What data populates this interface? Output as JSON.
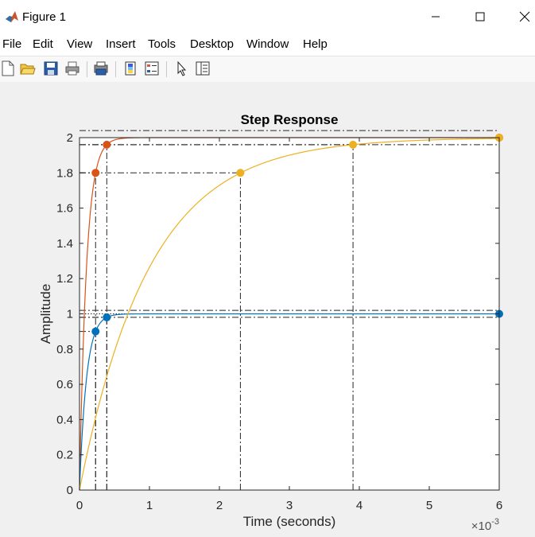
{
  "window": {
    "title": "Figure 1"
  },
  "menu": [
    "File",
    "Edit",
    "View",
    "Insert",
    "Tools",
    "Desktop",
    "Window",
    "Help"
  ],
  "toolbar": [
    "new-figure-icon",
    "open-file-icon",
    "save-icon",
    "print-icon",
    "print-preview-icon",
    "colorbar-icon",
    "legend-icon",
    "pointer-icon",
    "property-inspector-icon"
  ],
  "chart_data": {
    "type": "line",
    "title": "Step Response",
    "xlabel": "Time (seconds)",
    "ylabel": "Amplitude",
    "x_exponent_label": "×10",
    "x_exponent_power": "-3",
    "xlim": [
      0,
      6
    ],
    "ylim": [
      0,
      2
    ],
    "x_ticks": [
      "0",
      "1",
      "2",
      "3",
      "4",
      "5",
      "6"
    ],
    "y_ticks": [
      "0",
      "0.2",
      "0.4",
      "0.6",
      "0.8",
      "1",
      "1.2",
      "1.4",
      "1.6",
      "1.8",
      "2"
    ],
    "grid": false,
    "series": [
      {
        "color": "#D95319",
        "final": 2,
        "tau": 0.1,
        "rise_marker": [
          0.23,
          1.8
        ],
        "settle_marker": [
          0.39,
          1.96
        ],
        "end_marker": [
          6,
          2
        ]
      },
      {
        "color": "#0072BD",
        "final": 1,
        "tau": 0.1,
        "rise_marker": [
          0.23,
          0.9
        ],
        "settle_marker": [
          0.39,
          0.98
        ],
        "end_marker": [
          6,
          1
        ]
      },
      {
        "color": "#EDB120",
        "final": 2,
        "tau": 1,
        "rise_marker": [
          2.3,
          1.8
        ],
        "settle_marker": [
          3.91,
          1.96
        ],
        "end_marker": [
          6,
          2
        ]
      }
    ],
    "settling_bands": [
      {
        "low": 1.96,
        "high": 2.04
      },
      {
        "low": 0.98,
        "high": 1.02
      }
    ]
  }
}
